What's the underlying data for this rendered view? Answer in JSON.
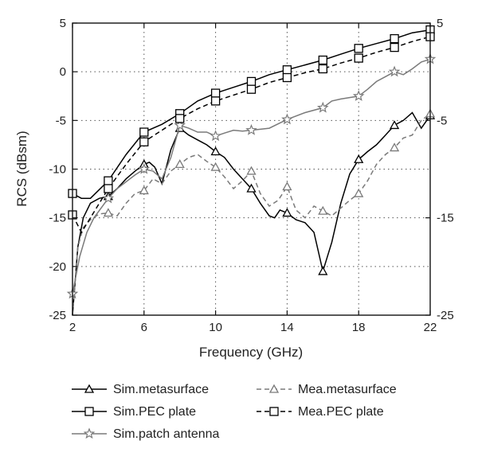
{
  "chart_data": {
    "type": "line",
    "xlabel": "Frequency (GHz)",
    "ylabel": "RCS (dBsm)",
    "xlim": [
      2,
      22
    ],
    "ylim": [
      -25,
      5
    ],
    "xticks": [
      2,
      6,
      10,
      14,
      18,
      22
    ],
    "yticks": [
      5,
      0,
      -5,
      -10,
      -15,
      -20,
      -25
    ],
    "right_yticks": [
      5,
      -5,
      -15,
      -25
    ],
    "grid": "dotted",
    "legend_position": "bottom",
    "series": [
      {
        "name": "Sim.metasurface",
        "color": "#000000",
        "dash": "solid",
        "marker": "triangle",
        "x": [
          2.0,
          2.3,
          2.6,
          3.0,
          3.5,
          4.0,
          4.5,
          5.0,
          5.5,
          6.0,
          6.3,
          6.6,
          7.0,
          7.5,
          8.0,
          8.5,
          9.0,
          9.5,
          10.0,
          10.5,
          11.0,
          11.5,
          12.0,
          12.5,
          13.0,
          13.3,
          13.6,
          14.0,
          14.5,
          15.0,
          15.5,
          16.0,
          16.5,
          17.0,
          17.5,
          18.0,
          18.5,
          19.0,
          19.5,
          20.0,
          20.5,
          21.0,
          21.5,
          22.0
        ],
        "y": [
          -25,
          -18,
          -15,
          -13.5,
          -13,
          -12.8,
          -12,
          -11,
          -10.2,
          -9.5,
          -9.3,
          -9.8,
          -11.5,
          -8.0,
          -5.8,
          -6.5,
          -7.0,
          -7.5,
          -8.2,
          -8.8,
          -10.0,
          -11.0,
          -12.0,
          -13.5,
          -14.8,
          -15.0,
          -14.2,
          -14.5,
          -15.2,
          -15.5,
          -16.5,
          -20.5,
          -17.5,
          -13.5,
          -10.5,
          -9.0,
          -8.2,
          -7.5,
          -6.5,
          -5.5,
          -5.0,
          -4.2,
          -5.8,
          -4.5
        ]
      },
      {
        "name": "Sim.PEC plate",
        "color": "#000000",
        "dash": "solid",
        "marker": "square",
        "x": [
          2,
          2.5,
          3,
          4,
          5,
          6,
          7,
          8,
          9,
          10,
          11,
          12,
          13,
          14,
          15,
          16,
          17,
          18,
          19,
          20,
          21,
          22
        ],
        "y": [
          -12.5,
          -13.0,
          -13.0,
          -11.2,
          -8.5,
          -6.2,
          -5.4,
          -4.3,
          -3.0,
          -2.2,
          -1.6,
          -1.0,
          -0.3,
          0.2,
          0.7,
          1.2,
          1.8,
          2.4,
          2.9,
          3.4,
          4.0,
          4.3
        ]
      },
      {
        "name": "Sim.patch antenna",
        "color": "#7a7a7a",
        "dash": "solid",
        "marker": "star",
        "x": [
          2,
          2.4,
          2.8,
          3.2,
          3.6,
          4.0,
          4.5,
          5.0,
          5.5,
          6.0,
          6.5,
          7.0,
          7.5,
          8.0,
          8.5,
          9.0,
          9.5,
          10.0,
          10.5,
          11.0,
          11.5,
          12.0,
          13.0,
          14.0,
          15.0,
          16.0,
          16.5,
          17.0,
          18.0,
          18.5,
          19.0,
          19.5,
          20.0,
          20.5,
          21.0,
          21.5,
          22.0
        ],
        "y": [
          -22.8,
          -19.0,
          -16.5,
          -15.0,
          -14.0,
          -13.0,
          -12.0,
          -11.3,
          -10.6,
          -10.0,
          -10.2,
          -11.0,
          -8.8,
          -5.5,
          -5.8,
          -6.2,
          -6.2,
          -6.6,
          -6.3,
          -6.0,
          -6.1,
          -6.0,
          -5.8,
          -4.9,
          -4.2,
          -3.7,
          -3.0,
          -2.8,
          -2.5,
          -1.8,
          -1.0,
          -0.5,
          0.0,
          -0.3,
          0.3,
          1.0,
          1.3
        ]
      },
      {
        "name": "Mea.metasurface",
        "color": "#7a7a7a",
        "dash": "dashed",
        "marker": "triangle",
        "x": [
          2.0,
          2.3,
          2.6,
          3.0,
          3.5,
          4.0,
          4.5,
          5.0,
          5.5,
          6.0,
          6.5,
          7.0,
          7.5,
          8.0,
          8.5,
          9.0,
          9.5,
          10.0,
          10.5,
          11.0,
          11.5,
          12.0,
          12.5,
          13.0,
          13.5,
          14.0,
          14.5,
          15.0,
          15.5,
          16.0,
          16.5,
          17.0,
          17.5,
          18.0,
          18.5,
          19.0,
          19.5,
          20.0,
          20.5,
          21.0,
          21.5,
          22.0
        ],
        "y": [
          -25,
          -18,
          -16,
          -15.2,
          -14.6,
          -14.5,
          -14.8,
          -13.5,
          -12.5,
          -12.2,
          -11.0,
          -11.5,
          -10.2,
          -9.5,
          -8.8,
          -8.5,
          -9.2,
          -9.8,
          -10.8,
          -12.0,
          -11.2,
          -10.2,
          -12.5,
          -13.8,
          -13.2,
          -11.8,
          -14.2,
          -15.0,
          -13.8,
          -14.3,
          -14.8,
          -14.0,
          -13.2,
          -12.5,
          -11.2,
          -9.5,
          -8.5,
          -7.8,
          -6.8,
          -6.5,
          -5.0,
          -4.3
        ]
      },
      {
        "name": "Mea.PEC plate",
        "color": "#000000",
        "dash": "dashed",
        "marker": "square",
        "x": [
          2,
          2.5,
          3,
          4,
          5,
          6,
          7,
          8,
          9,
          10,
          11,
          12,
          13,
          14,
          15,
          16,
          17,
          18,
          19,
          20,
          21,
          22
        ],
        "y": [
          -14.7,
          -16.5,
          -15.0,
          -12.0,
          -9.5,
          -7.2,
          -6.0,
          -4.8,
          -3.8,
          -3.0,
          -2.4,
          -1.8,
          -1.1,
          -0.6,
          -0.1,
          0.3,
          0.9,
          1.4,
          2.0,
          2.5,
          3.1,
          3.6
        ]
      }
    ],
    "legend": [
      {
        "label": "Sim.metasurface",
        "series": 0
      },
      {
        "label": "Mea.metasurface",
        "series": 3
      },
      {
        "label": "Sim.PEC plate",
        "series": 1
      },
      {
        "label": "Mea.PEC plate",
        "series": 4
      },
      {
        "label": "Sim.patch antenna",
        "series": 2
      }
    ]
  }
}
